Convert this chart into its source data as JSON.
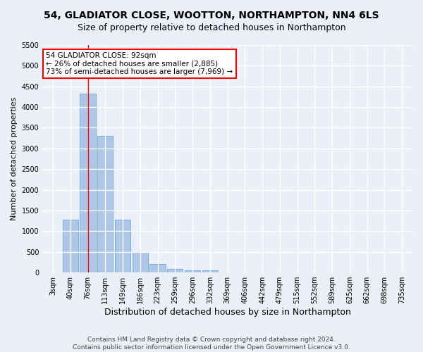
{
  "title": "54, GLADIATOR CLOSE, WOOTTON, NORTHAMPTON, NN4 6LS",
  "subtitle": "Size of property relative to detached houses in Northampton",
  "xlabel": "Distribution of detached houses by size in Northampton",
  "ylabel": "Number of detached properties",
  "footer_line1": "Contains HM Land Registry data © Crown copyright and database right 2024.",
  "footer_line2": "Contains public sector information licensed under the Open Government Licence v3.0.",
  "categories": [
    "3sqm",
    "40sqm",
    "76sqm",
    "113sqm",
    "149sqm",
    "186sqm",
    "223sqm",
    "259sqm",
    "296sqm",
    "332sqm",
    "369sqm",
    "406sqm",
    "442sqm",
    "479sqm",
    "515sqm",
    "552sqm",
    "589sqm",
    "625sqm",
    "662sqm",
    "698sqm",
    "735sqm"
  ],
  "values": [
    0,
    1270,
    4330,
    3300,
    1280,
    490,
    210,
    85,
    60,
    55,
    0,
    0,
    0,
    0,
    0,
    0,
    0,
    0,
    0,
    0,
    0
  ],
  "bar_color": "#aec6e8",
  "bar_edge_color": "#5a9fd4",
  "annotation_line_bin": 2,
  "annotation_box_text": "54 GLADIATOR CLOSE: 92sqm\n← 26% of detached houses are smaller (2,885)\n73% of semi-detached houses are larger (7,969) →",
  "annotation_box_color": "white",
  "annotation_box_edge_color": "red",
  "ylim": [
    0,
    5500
  ],
  "yticks": [
    0,
    500,
    1000,
    1500,
    2000,
    2500,
    3000,
    3500,
    4000,
    4500,
    5000,
    5500
  ],
  "background_color": "#eaeff8",
  "plot_background_color": "#eaeff8",
  "grid_color": "white",
  "title_fontsize": 10,
  "subtitle_fontsize": 9,
  "xlabel_fontsize": 9,
  "ylabel_fontsize": 8,
  "tick_fontsize": 7,
  "footer_fontsize": 6.5
}
